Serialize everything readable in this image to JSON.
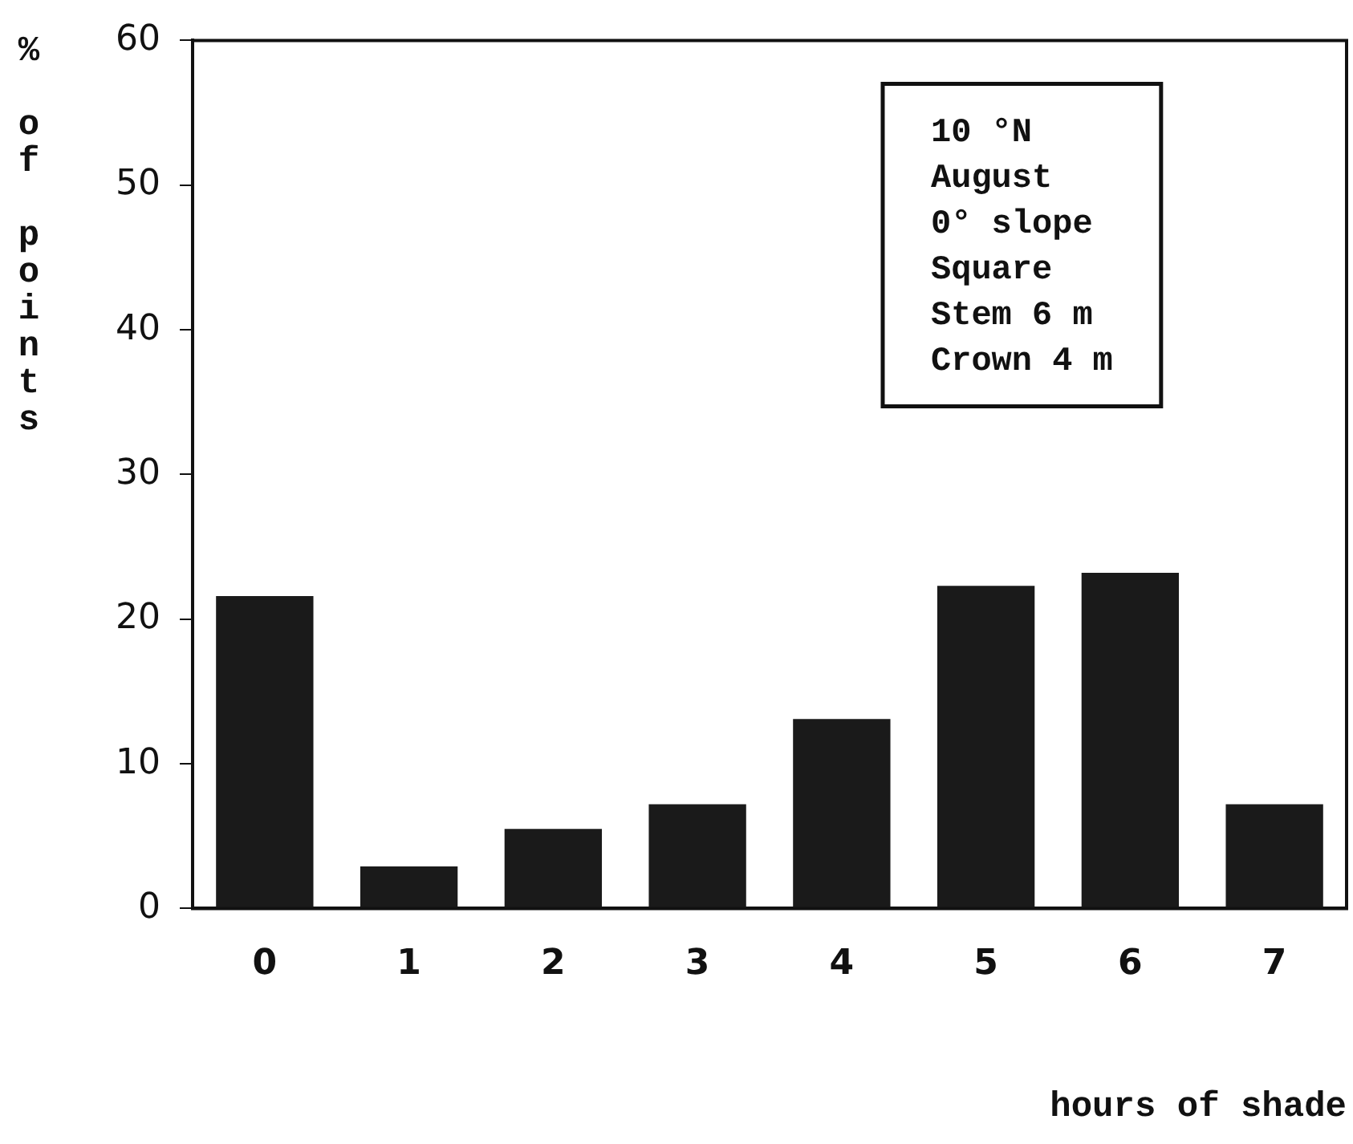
{
  "chart_data": {
    "type": "bar",
    "xlabel": "hours of shade",
    "ylabel": "% of points",
    "categories": [
      "0",
      "1",
      "2",
      "3",
      "4",
      "5",
      "6",
      "7"
    ],
    "values": [
      21.6,
      2.9,
      5.5,
      7.2,
      13.1,
      22.3,
      23.2,
      7.2
    ],
    "color": "#1a1a1a",
    "ylim": [
      0,
      60
    ],
    "yticks": [
      0,
      10,
      20,
      30,
      40,
      50,
      60
    ],
    "grid": false,
    "legend": false,
    "annotations": [
      "10 °N",
      "August",
      "0° slope",
      "Square",
      "Stem 6 m",
      "Crown 4 m"
    ]
  }
}
